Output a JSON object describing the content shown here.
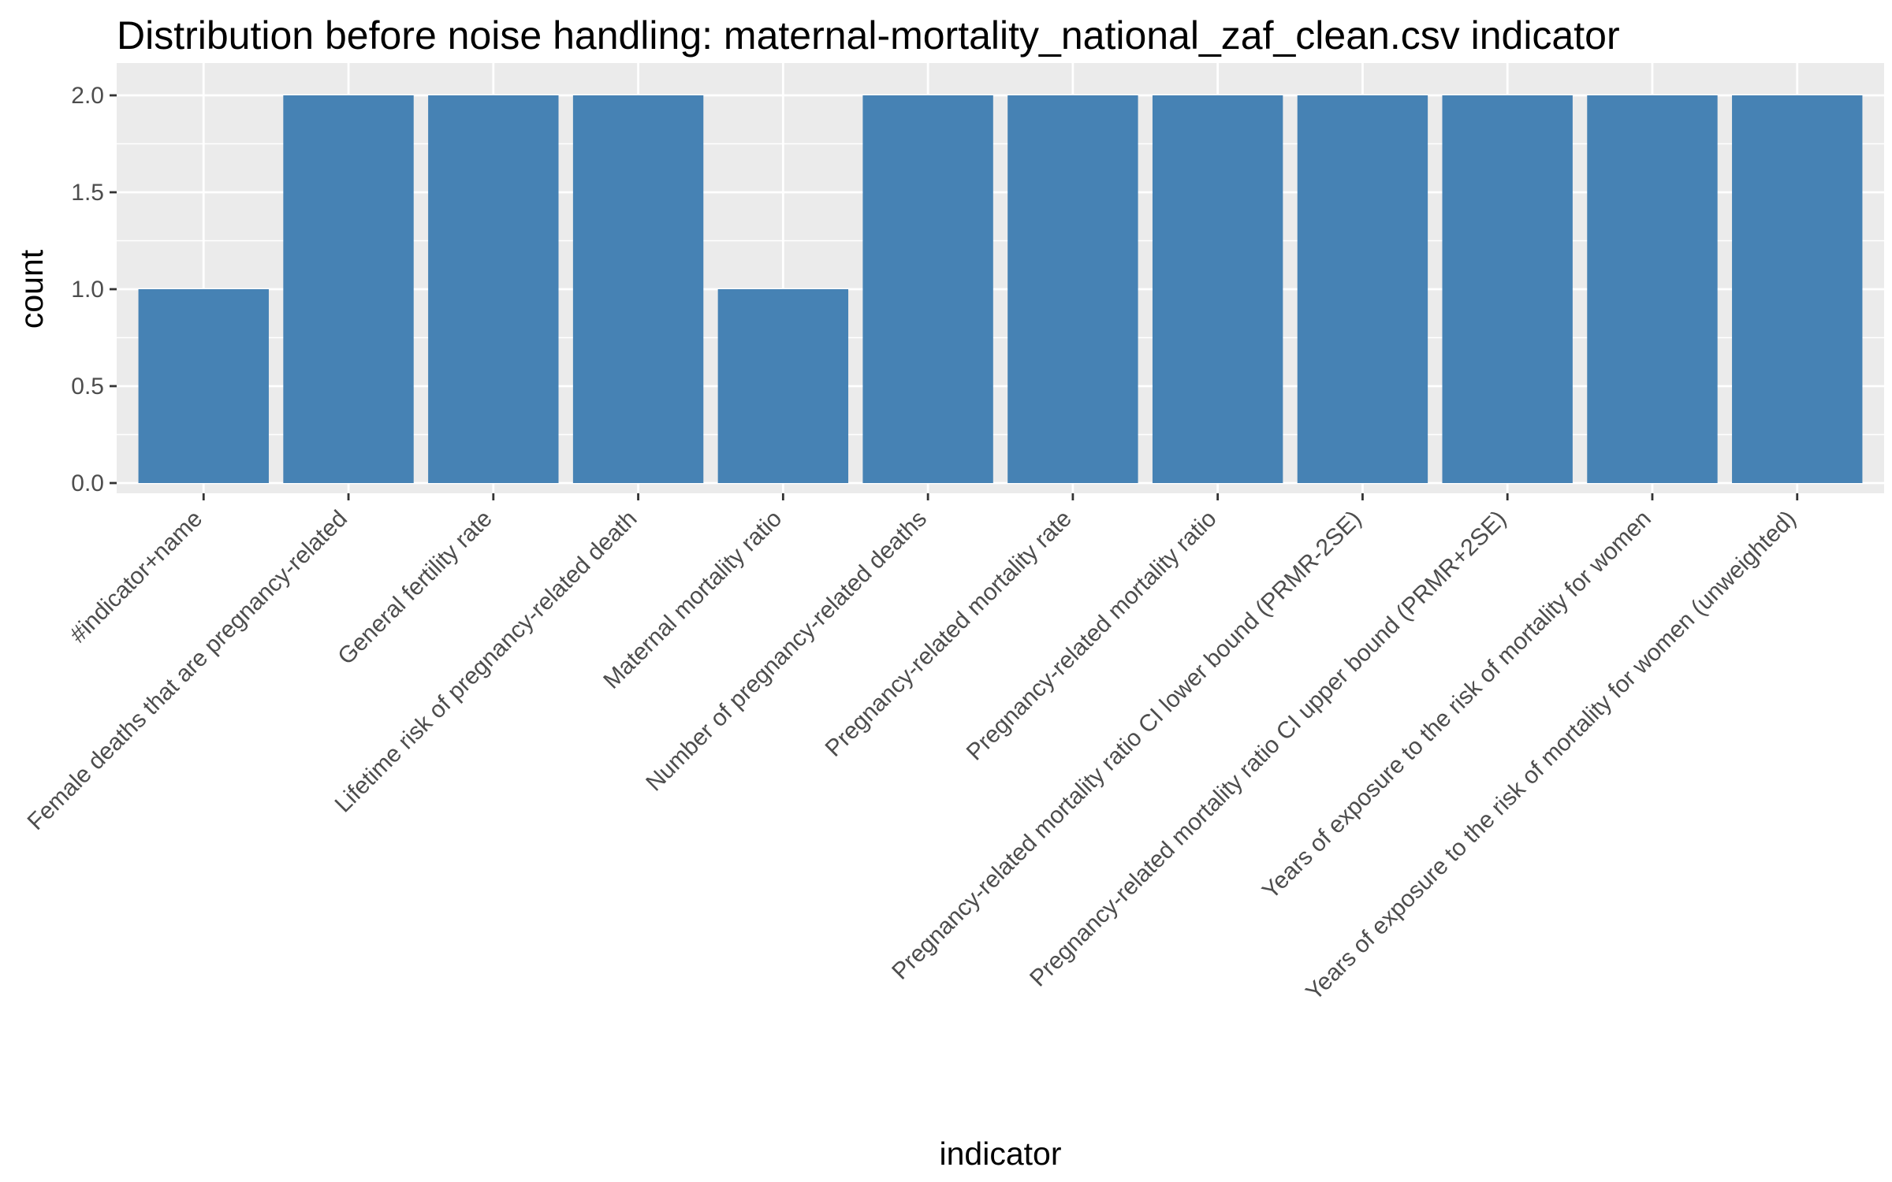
{
  "chart_data": {
    "type": "bar",
    "title": "Distribution before noise handling: maternal-mortality_national_zaf_clean.csv indicator",
    "xlabel": "indicator",
    "ylabel": "count",
    "categories": [
      "#indicator+name",
      "Female deaths that are pregnancy-related",
      "General fertility rate",
      "Lifetime risk of pregnancy-related death",
      "Maternal mortality ratio",
      "Number of pregnancy-related deaths",
      "Pregnancy-related mortality rate",
      "Pregnancy-related mortality ratio",
      "Pregnancy-related mortality ratio CI lower bound (PRMR-2SE)",
      "Pregnancy-related mortality ratio CI upper bound (PRMR+2SE)",
      "Years of exposure to the risk of mortality for women",
      "Years of exposure to the risk of mortality for women (unweighted)"
    ],
    "values": [
      1,
      2,
      2,
      2,
      1,
      2,
      2,
      2,
      2,
      2,
      2,
      2
    ],
    "ylim": [
      0,
      2.0
    ],
    "yticks": [
      "0.0",
      "0.5",
      "1.0",
      "1.5",
      "2.0"
    ],
    "grid": true,
    "legend": "none",
    "colors": {
      "bar": "#4682b4",
      "panel": "#ebebeb",
      "grid": "#ffffff",
      "tick": "#333333",
      "tick_text": "#4d4d4d"
    }
  }
}
